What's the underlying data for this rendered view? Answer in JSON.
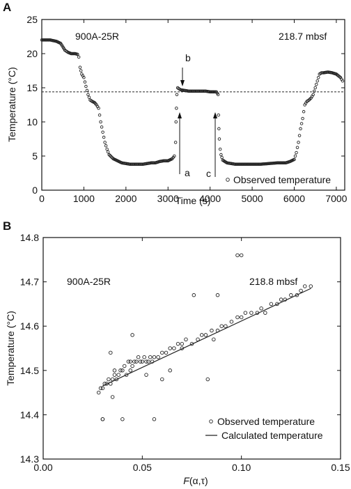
{
  "chart_data": [
    {
      "type": "scatter",
      "panel_label": "A",
      "well": "900A-25R",
      "depth": "218.7 mbsf",
      "xlabel": "Time (s)",
      "ylabel": "Temperature (°C)",
      "xlim": [
        0,
        7200
      ],
      "ylim": [
        0,
        25
      ],
      "xticks": [
        0,
        1000,
        2000,
        3000,
        4000,
        5000,
        6000,
        7000
      ],
      "yticks": [
        0,
        5,
        10,
        15,
        20,
        25
      ],
      "xtick_labels": [
        "0",
        "1000",
        "2000",
        "3000",
        "4000",
        "5000",
        "6000",
        "7000"
      ],
      "ytick_labels": [
        "0",
        "5",
        "10",
        "15",
        "20",
        "25"
      ],
      "reference_line": 14.4,
      "series": [
        {
          "name": "Observed temperature",
          "x": [
            0,
            200,
            350,
            450,
            550,
            620,
            700,
            790,
            850,
            880,
            910,
            950,
            1000,
            1050,
            1100,
            1150,
            1200,
            1260,
            1300,
            1350,
            1400,
            1450,
            1500,
            1550,
            1600,
            1700,
            1800,
            1900,
            2000,
            2100,
            2200,
            2300,
            2400,
            2500,
            2600,
            2700,
            2800,
            2900,
            3000,
            3100,
            3150,
            3180,
            3190,
            3200,
            3210,
            3230,
            3250,
            3300,
            3400,
            3500,
            3600,
            3700,
            3800,
            3900,
            4000,
            4100,
            4150,
            4190,
            4200,
            4210,
            4220,
            4240,
            4260,
            4300,
            4400,
            4500,
            4600,
            4800,
            5000,
            5200,
            5400,
            5600,
            5800,
            5900,
            6000,
            6050,
            6100,
            6150,
            6200,
            6250,
            6300,
            6350,
            6400,
            6450,
            6500,
            6550,
            6600,
            6650,
            6700,
            6800,
            6900,
            7000,
            7100,
            7150
          ],
          "y": [
            22.0,
            22.0,
            21.8,
            21.5,
            20.5,
            20.2,
            20.0,
            20.0,
            19.9,
            19.5,
            18.0,
            17.0,
            16.5,
            15.2,
            14.0,
            13.2,
            13.0,
            12.8,
            12.5,
            12.0,
            10.0,
            8.5,
            7.0,
            6.0,
            5.2,
            4.6,
            4.3,
            4.0,
            3.9,
            3.8,
            3.8,
            3.8,
            3.8,
            3.9,
            4.0,
            4.0,
            4.2,
            4.3,
            4.3,
            4.6,
            5.0,
            7.0,
            10.0,
            12.0,
            14.0,
            15.0,
            14.9,
            14.7,
            14.6,
            14.5,
            14.5,
            14.5,
            14.5,
            14.5,
            14.4,
            14.4,
            14.4,
            14.0,
            11.0,
            9.0,
            7.5,
            6.0,
            5.2,
            4.4,
            4.0,
            3.9,
            3.8,
            3.8,
            3.8,
            3.8,
            3.9,
            4.0,
            4.0,
            4.2,
            4.5,
            5.5,
            7.0,
            9.0,
            10.5,
            12.5,
            13.0,
            13.2,
            13.5,
            14.0,
            15.0,
            16.0,
            17.0,
            17.2,
            17.2,
            17.3,
            17.2,
            17.0,
            16.5,
            16.0
          ]
        }
      ],
      "annotations": [
        "a",
        "b",
        "c"
      ],
      "legend": "Observed temperature",
      "legend_position": "bottom-right"
    },
    {
      "type": "scatter",
      "panel_label": "B",
      "well": "900A-25R",
      "depth": "218.8 mbsf",
      "xlabel_prefix": "F",
      "xlabel_suffix": "(α,τ)",
      "ylabel": "Temperature (°C)",
      "xlim": [
        0,
        0.15
      ],
      "ylim": [
        14.3,
        14.8
      ],
      "xticks": [
        0,
        0.05,
        0.1,
        0.15
      ],
      "yticks": [
        14.3,
        14.4,
        14.5,
        14.6,
        14.7,
        14.8
      ],
      "xtick_labels": [
        "0.00",
        "0.05",
        "0.10",
        "0.15"
      ],
      "ytick_labels": [
        "14.3",
        "14.4",
        "14.5",
        "14.6",
        "14.7",
        "14.8"
      ],
      "series": [
        {
          "name": "Observed temperature",
          "x": [
            0.028,
            0.029,
            0.03,
            0.031,
            0.03,
            0.032,
            0.033,
            0.034,
            0.035,
            0.036,
            0.037,
            0.038,
            0.039,
            0.04,
            0.041,
            0.042,
            0.043,
            0.044,
            0.045,
            0.046,
            0.047,
            0.048,
            0.049,
            0.05,
            0.051,
            0.052,
            0.053,
            0.054,
            0.055,
            0.056,
            0.058,
            0.06,
            0.062,
            0.064,
            0.066,
            0.068,
            0.07,
            0.072,
            0.075,
            0.078,
            0.08,
            0.082,
            0.085,
            0.088,
            0.09,
            0.092,
            0.095,
            0.098,
            0.1,
            0.102,
            0.105,
            0.108,
            0.11,
            0.112,
            0.115,
            0.118,
            0.12,
            0.122,
            0.125,
            0.128,
            0.13,
            0.132,
            0.135,
            0.03,
            0.034,
            0.035,
            0.04,
            0.045,
            0.056,
            0.06,
            0.076,
            0.083,
            0.088,
            0.098,
            0.1,
            0.036,
            0.044,
            0.052,
            0.064,
            0.07,
            0.086
          ],
          "y": [
            14.45,
            14.46,
            14.46,
            14.47,
            14.39,
            14.47,
            14.48,
            14.47,
            14.48,
            14.49,
            14.48,
            14.49,
            14.5,
            14.5,
            14.51,
            14.49,
            14.52,
            14.52,
            14.51,
            14.52,
            14.52,
            14.53,
            14.52,
            14.52,
            14.53,
            14.52,
            14.52,
            14.53,
            14.52,
            14.53,
            14.53,
            14.54,
            14.54,
            14.55,
            14.55,
            14.56,
            14.56,
            14.57,
            14.56,
            14.57,
            14.58,
            14.58,
            14.59,
            14.59,
            14.6,
            14.6,
            14.61,
            14.62,
            14.62,
            14.63,
            14.63,
            14.63,
            14.64,
            14.63,
            14.65,
            14.65,
            14.66,
            14.66,
            14.67,
            14.67,
            14.68,
            14.69,
            14.69,
            14.39,
            14.54,
            14.44,
            14.39,
            14.58,
            14.39,
            14.48,
            14.67,
            14.48,
            14.67,
            14.76,
            14.76,
            14.5,
            14.5,
            14.49,
            14.5,
            14.55,
            14.57
          ]
        },
        {
          "name": "Calculated temperature",
          "type": "line",
          "x": [
            0.03,
            0.135
          ],
          "y": [
            14.465,
            14.685
          ]
        }
      ],
      "legend_position": "bottom-right"
    }
  ]
}
